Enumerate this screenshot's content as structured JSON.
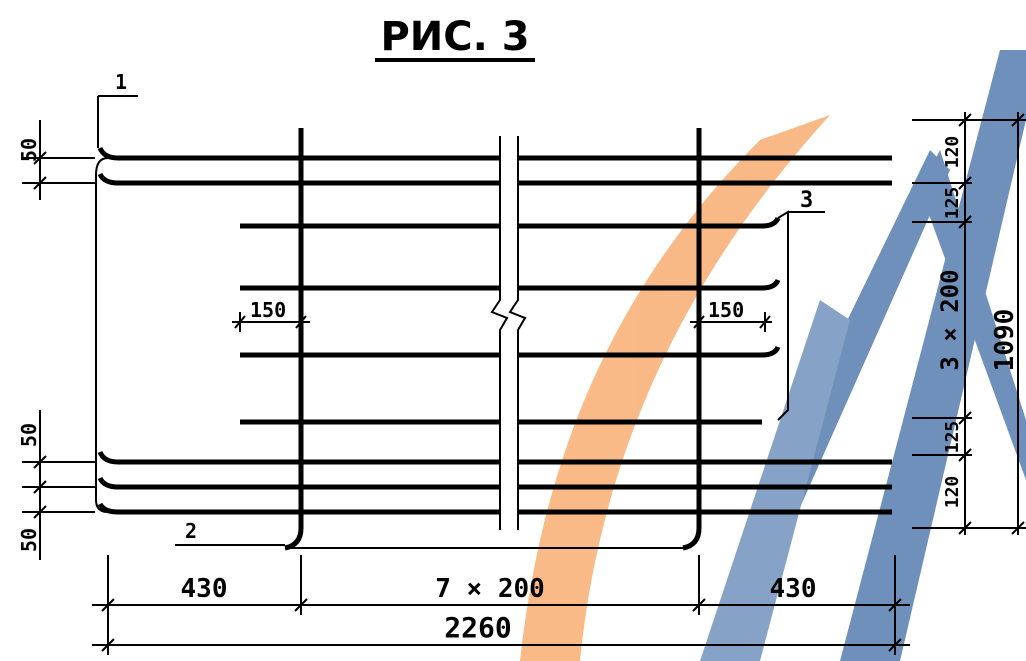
{
  "title": "РИС. 3",
  "callouts": {
    "c1": "1",
    "c2": "2",
    "c3": "3"
  },
  "dimensions": {
    "left_50_top": "50",
    "left_50_mid": "50",
    "left_50_bottom": "50",
    "sp150_left": "150",
    "sp150_right": "150",
    "r120_top": "120",
    "r125_top": "125",
    "r3x200": "3 × 200",
    "r125_bottom": "125",
    "r120_bottom": "120",
    "total_1090": "1090",
    "b430_left": "430",
    "b7x200": "7 × 200",
    "b430_right": "430",
    "total_2260": "2260"
  },
  "colors": {
    "line": "#000000",
    "watermark_orange": "#f9b27a",
    "watermark_blue": "#4f76a8"
  }
}
